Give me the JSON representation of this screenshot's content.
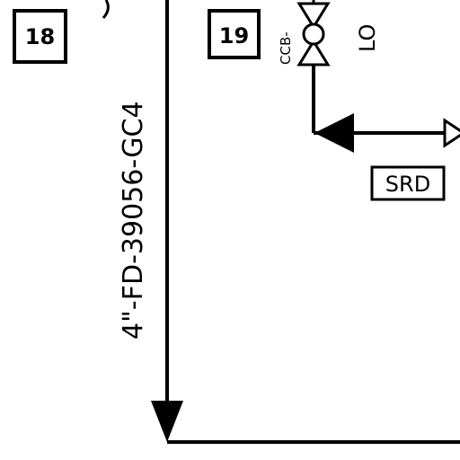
{
  "tags": {
    "box_18": "18",
    "box_19": "19",
    "srd": "SRD"
  },
  "line_label": "4\"-FD-39056-GC4",
  "valve": {
    "id_prefix": "CCB-",
    "state": "LO"
  },
  "colors": {
    "ink": "#000000",
    "background": "#ffffff"
  }
}
